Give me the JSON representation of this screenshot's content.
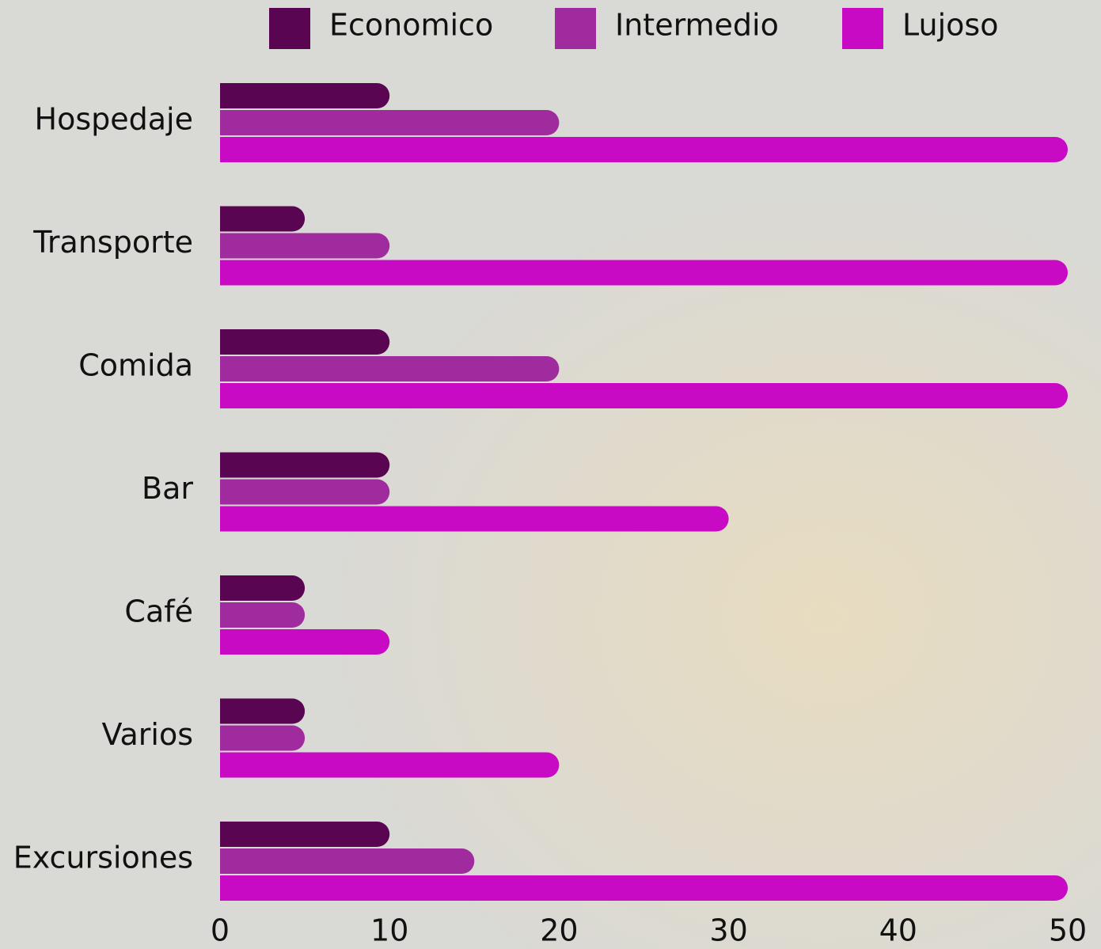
{
  "chart_data": {
    "type": "bar",
    "orientation": "horizontal",
    "categories": [
      "Hospedaje",
      "Transporte",
      "Comida",
      "Bar",
      "Café",
      "Varios",
      "Excursiones"
    ],
    "series": [
      {
        "name": "Economico",
        "color": "#5a0552",
        "values": [
          10,
          5,
          10,
          10,
          5,
          5,
          10
        ]
      },
      {
        "name": "Intermedio",
        "color": "#a02b9e",
        "values": [
          20,
          10,
          20,
          10,
          5,
          5,
          15
        ]
      },
      {
        "name": "Lujoso",
        "color": "#c90ac5",
        "values": [
          50,
          50,
          50,
          30,
          10,
          20,
          50
        ]
      }
    ],
    "xlim": [
      0,
      50
    ],
    "xticks": [
      0,
      10,
      20,
      30,
      40,
      50
    ],
    "grid": false
  }
}
